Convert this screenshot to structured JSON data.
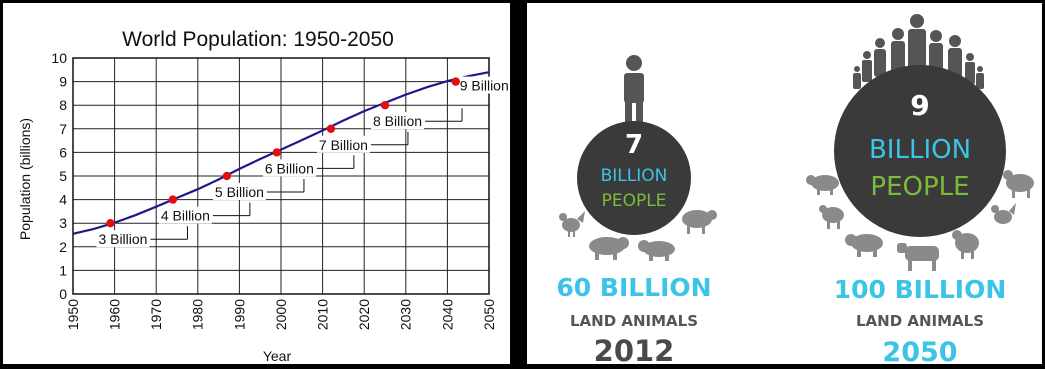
{
  "chart_data": {
    "type": "line",
    "title": "World Population: 1950-2050",
    "xlabel": "Year",
    "ylabel": "Population (billions)",
    "xlim": [
      1950,
      2050
    ],
    "ylim": [
      0,
      10
    ],
    "grid": true,
    "x_ticks": [
      "1950",
      "1960",
      "1970",
      "1980",
      "1990",
      "2000",
      "2010",
      "2020",
      "2030",
      "2040",
      "2050"
    ],
    "y_ticks": [
      "0",
      "1",
      "2",
      "3",
      "4",
      "5",
      "6",
      "7",
      "8",
      "9",
      "10"
    ],
    "series": [
      {
        "x": [
          1950,
          1955,
          1960,
          1965,
          1970,
          1975,
          1980,
          1985,
          1990,
          1995,
          2000,
          2005,
          2010,
          2015,
          2020,
          2025,
          2030,
          2035,
          2040,
          2045,
          2050
        ],
        "y": [
          2.55,
          2.76,
          3.02,
          3.34,
          3.7,
          4.07,
          4.44,
          4.85,
          5.3,
          5.72,
          6.12,
          6.52,
          6.93,
          7.35,
          7.75,
          8.1,
          8.45,
          8.76,
          9.02,
          9.23,
          9.4
        ],
        "color": "#1f1a8a"
      }
    ],
    "milestones": [
      {
        "x": 1959,
        "y": 3,
        "label": "3 Billion"
      },
      {
        "x": 1974,
        "y": 4,
        "label": "4 Billion"
      },
      {
        "x": 1987,
        "y": 5,
        "label": "5 Billion"
      },
      {
        "x": 1999,
        "y": 6,
        "label": "6 Billion"
      },
      {
        "x": 2012,
        "y": 7,
        "label": "7 Billion"
      },
      {
        "x": 2025,
        "y": 8,
        "label": "8 Billion"
      },
      {
        "x": 2042,
        "y": 9,
        "label": "9 Billion"
      }
    ],
    "marker_color": "#e01010"
  },
  "infographic": {
    "left": {
      "number": "7",
      "line1": "BILLION",
      "line2": "PEOPLE",
      "animals": "60 BILLION",
      "animals_sub": "LAND ANIMALS",
      "year": "2012"
    },
    "right": {
      "number": "9",
      "line1": "BILLION",
      "line2": "PEOPLE",
      "animals": "100 BILLION",
      "animals_sub": "LAND ANIMALS",
      "year": "2050"
    },
    "colors": {
      "blue": "#3cc4e6",
      "green": "#7bbb3a",
      "dark": "#3a3a3a",
      "silhouette": "#555555",
      "animal": "#8a8a8a"
    }
  }
}
